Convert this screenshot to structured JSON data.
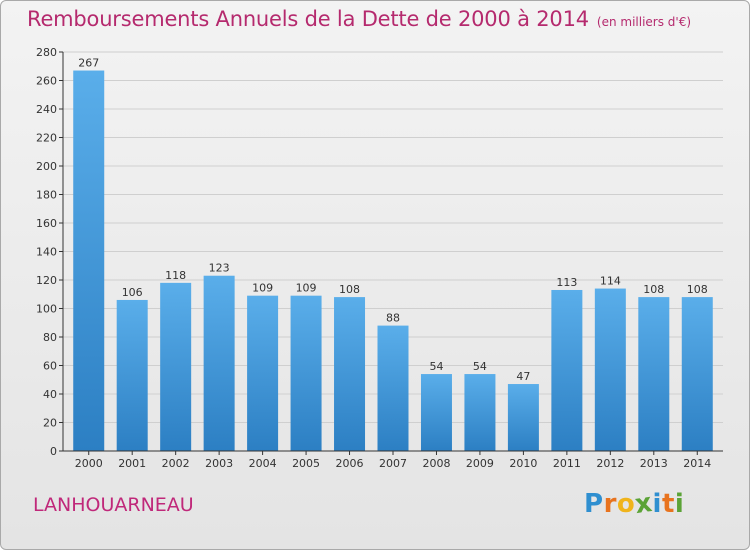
{
  "title": "Remboursements Annuels de la Dette de 2000 à 2014",
  "subtitle": "(en milliers d'€)",
  "commune": "LANHOUARNEAU",
  "brand": {
    "text": "Proxiti",
    "letters": [
      "P",
      "r",
      "o",
      "x",
      "i",
      "t",
      "i"
    ],
    "colors": [
      "#2f8fd0",
      "#e8731e",
      "#f0b41c",
      "#5ba336",
      "#2f8fd0",
      "#e8731e",
      "#5ba336"
    ]
  },
  "colors": {
    "title": "#b52a6e",
    "bar_top": "#5aaeea",
    "bar_bottom": "#2c7fc3",
    "axis": "#333333",
    "grid": "#cfcfcf"
  },
  "chart_data": {
    "type": "bar",
    "categories": [
      "2000",
      "2001",
      "2002",
      "2003",
      "2004",
      "2005",
      "2006",
      "2007",
      "2008",
      "2009",
      "2010",
      "2011",
      "2012",
      "2013",
      "2014"
    ],
    "values": [
      267,
      106,
      118,
      123,
      109,
      109,
      108,
      88,
      54,
      54,
      47,
      113,
      114,
      108,
      108
    ],
    "ylim": [
      0,
      280
    ],
    "yticks": [
      0,
      20,
      40,
      60,
      80,
      100,
      120,
      140,
      160,
      180,
      200,
      220,
      240,
      260,
      280
    ],
    "grid": true,
    "xlabel": "",
    "ylabel": ""
  }
}
